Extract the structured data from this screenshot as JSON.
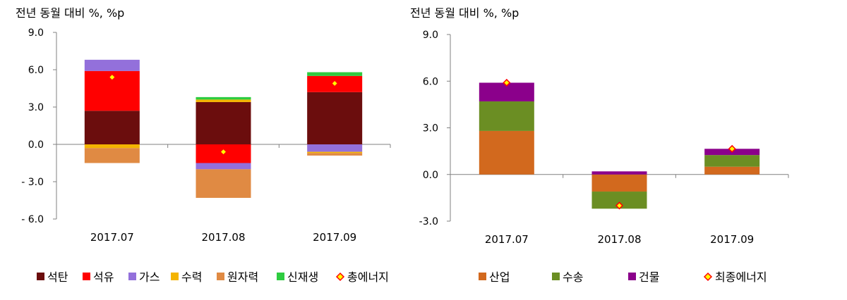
{
  "chart_data": [
    {
      "type": "stacked-bar",
      "unit_label": "전년 동월 대비 %, %p",
      "categories": [
        "2017.07",
        "2017.08",
        "2017.09"
      ],
      "ylim": [
        -6.0,
        9.0
      ],
      "yticks": [
        "9.0",
        "6.0",
        "3.0",
        "0.0",
        "- 3.0",
        "- 6.0"
      ],
      "ytick_values": [
        9,
        6,
        3,
        0,
        -3,
        -6
      ],
      "series": [
        {
          "name": "석탄",
          "color": "#6b0d0d",
          "values": [
            2.7,
            3.4,
            4.2
          ]
        },
        {
          "name": "석유",
          "color": "#ff0000",
          "values": [
            3.2,
            -1.5,
            1.3
          ]
        },
        {
          "name": "가스",
          "color": "#9370db",
          "values": [
            0.9,
            -0.5,
            -0.6
          ]
        },
        {
          "name": "수력",
          "color": "#f4b400",
          "values": [
            -0.3,
            0.2,
            -0.1
          ]
        },
        {
          "name": "원자력",
          "color": "#e08a43",
          "values": [
            -1.2,
            -2.3,
            -0.2
          ]
        },
        {
          "name": "신재생",
          "color": "#2ecc40",
          "values": [
            0.0,
            0.2,
            0.3
          ]
        }
      ],
      "total": {
        "name": "총에너지",
        "values": [
          5.4,
          -0.6,
          4.9
        ]
      },
      "grid": false,
      "legend_position": "bottom"
    },
    {
      "type": "stacked-bar",
      "unit_label": "전년 동월 대비 %, %p",
      "categories": [
        "2017.07",
        "2017.08",
        "2017.09"
      ],
      "ylim": [
        -3.0,
        9.0
      ],
      "yticks": [
        "9.0",
        "6.0",
        "3.0",
        "0.0",
        "-3.0"
      ],
      "ytick_values": [
        9,
        6,
        3,
        0,
        -3
      ],
      "series": [
        {
          "name": "산업",
          "color": "#d2691e",
          "values": [
            2.8,
            -1.1,
            0.5
          ]
        },
        {
          "name": "수송",
          "color": "#6b8e23",
          "values": [
            1.9,
            -1.1,
            0.75
          ]
        },
        {
          "name": "건물",
          "color": "#8b008b",
          "values": [
            1.2,
            0.2,
            0.4
          ]
        }
      ],
      "total": {
        "name": "최종에너지",
        "values": [
          5.9,
          -2.0,
          1.65
        ]
      },
      "grid": false,
      "legend_position": "bottom"
    }
  ]
}
